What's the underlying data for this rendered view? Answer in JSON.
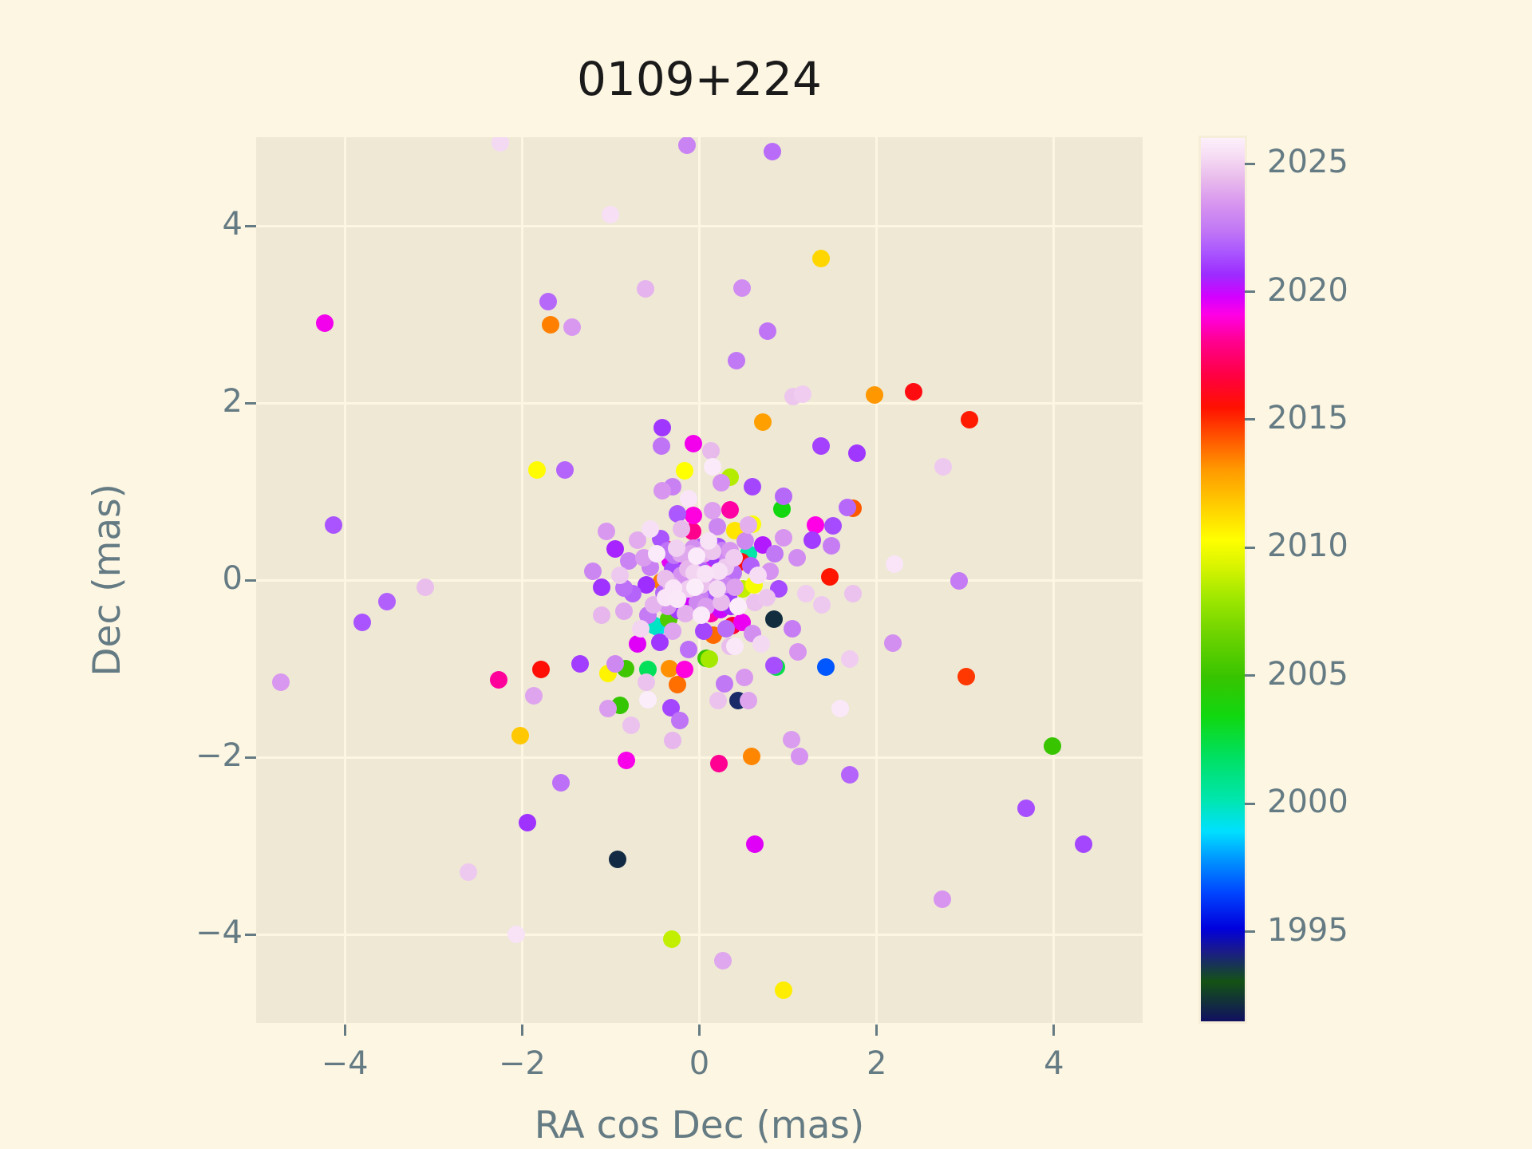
{
  "title": "0109+224",
  "axes": {
    "xlabel": "RA cos Dec (mas)",
    "ylabel": "Dec (mas)",
    "xlim": [
      -5,
      5
    ],
    "ylim": [
      -5,
      5
    ],
    "xticks": [
      -4,
      -2,
      0,
      2,
      4
    ],
    "yticks": [
      4,
      2,
      0,
      -2,
      -4
    ],
    "grid": true
  },
  "colorbar": {
    "vmin": 1991.5,
    "vmax": 2026,
    "ticks": [
      2025,
      2020,
      2015,
      2010,
      2005,
      2000,
      1995
    ],
    "stops": [
      [
        0.0,
        "#101060"
      ],
      [
        0.045,
        "#145214"
      ],
      [
        0.08,
        "#1a1a8c"
      ],
      [
        0.105,
        "#0000dc"
      ],
      [
        0.145,
        "#0044ff"
      ],
      [
        0.185,
        "#0099ff"
      ],
      [
        0.215,
        "#00e0ff"
      ],
      [
        0.25,
        "#00e6b0"
      ],
      [
        0.3,
        "#00e060"
      ],
      [
        0.345,
        "#10d810"
      ],
      [
        0.39,
        "#38c400"
      ],
      [
        0.44,
        "#70d400"
      ],
      [
        0.48,
        "#a0e800"
      ],
      [
        0.515,
        "#d8f400"
      ],
      [
        0.545,
        "#ffff00"
      ],
      [
        0.585,
        "#ffcc00"
      ],
      [
        0.625,
        "#ff9900"
      ],
      [
        0.66,
        "#ff5500"
      ],
      [
        0.695,
        "#ff1100"
      ],
      [
        0.73,
        "#ff0040"
      ],
      [
        0.77,
        "#ff0090"
      ],
      [
        0.8,
        "#ff00e6"
      ],
      [
        0.82,
        "#d400ff"
      ],
      [
        0.845,
        "#9d2bff"
      ],
      [
        0.87,
        "#a955ff"
      ],
      [
        0.895,
        "#c177f5"
      ],
      [
        0.925,
        "#d795ef"
      ],
      [
        0.955,
        "#e9bcec"
      ],
      [
        0.98,
        "#f6ddf4"
      ],
      [
        1.0,
        "#fdf0fb"
      ]
    ]
  },
  "colors": {
    "page_bg": "#fdf6e3",
    "axes_bg": "#eee8d5",
    "grid": "#fdf6e3",
    "tick_text": "#657b83",
    "title_text": "#1a1a1a"
  },
  "chart_data": {
    "type": "scatter",
    "title": "0109+224",
    "xlabel": "RA cos Dec (mas)",
    "ylabel": "Dec (mas)",
    "xlim": [
      -5,
      5
    ],
    "ylim": [
      -5,
      5
    ],
    "color_value": "epoch year (colorbar 1995-2025, gist_ncar-like colormap)",
    "marker_size_px": 22,
    "points": [
      [
        -4.72,
        -1.15,
        2023.5
      ],
      [
        -4.23,
        2.9,
        2019.3
      ],
      [
        -4.13,
        0.62,
        2021.5
      ],
      [
        -3.8,
        -0.48,
        2021.5
      ],
      [
        -3.52,
        -0.24,
        2021.8
      ],
      [
        -3.09,
        -0.08,
        2024.5
      ],
      [
        -2.61,
        -3.3,
        2024.8
      ],
      [
        -2.25,
        4.94,
        2025.2
      ],
      [
        -2.26,
        -1.13,
        2018.2
      ],
      [
        -2.02,
        -1.76,
        2011.8
      ],
      [
        -2.07,
        -4.0,
        2025.5
      ],
      [
        -1.79,
        -1.01,
        2015.6
      ],
      [
        -1.87,
        -1.31,
        2023.8
      ],
      [
        -1.71,
        3.14,
        2022.0
      ],
      [
        -1.68,
        2.88,
        2013.5
      ],
      [
        -1.44,
        2.86,
        2023.5
      ],
      [
        -1.83,
        1.24,
        2010.4
      ],
      [
        -1.52,
        1.24,
        2021.9
      ],
      [
        -1.35,
        -0.95,
        2021.0
      ],
      [
        -1.03,
        -1.05,
        2010.6
      ],
      [
        -0.9,
        -1.41,
        2004.8
      ],
      [
        -0.83,
        -1.0,
        2005.2
      ],
      [
        -0.58,
        -1.01,
        2002.0
      ],
      [
        -0.58,
        -1.35,
        2025.9
      ],
      [
        -1.03,
        -1.45,
        2023.6
      ],
      [
        -0.92,
        -3.15,
        1992.1
      ],
      [
        -0.82,
        -2.04,
        2019.2
      ],
      [
        -1.56,
        -2.29,
        2022.2
      ],
      [
        -1.94,
        -2.74,
        2020.8
      ],
      [
        -0.34,
        -1.0,
        2013.2
      ],
      [
        -0.17,
        -1.01,
        2019.0
      ],
      [
        -0.25,
        -1.18,
        2013.8
      ],
      [
        -0.32,
        -1.44,
        2021.2
      ],
      [
        -0.22,
        -1.59,
        2022.3
      ],
      [
        -0.77,
        -1.64,
        2024.6
      ],
      [
        -0.3,
        -1.81,
        2024.3
      ],
      [
        -0.31,
        -4.05,
        2008.8
      ],
      [
        0.27,
        -4.3,
        2023.9
      ],
      [
        0.95,
        -4.63,
        2010.8
      ],
      [
        0.63,
        -2.98,
        2019.6
      ],
      [
        2.74,
        -3.6,
        2023.4
      ],
      [
        3.69,
        -2.58,
        2021.4
      ],
      [
        4.33,
        -2.98,
        2021.2
      ],
      [
        3.98,
        -1.87,
        2005.0
      ],
      [
        3.01,
        -1.09,
        2014.8
      ],
      [
        1.43,
        -0.98,
        1996.8
      ],
      [
        0.44,
        -1.36,
        1993.9
      ],
      [
        1.59,
        -1.45,
        2025.7
      ],
      [
        2.18,
        -0.71,
        2023.2
      ],
      [
        1.7,
        -2.2,
        2021.9
      ],
      [
        1.13,
        -1.99,
        2023.3
      ],
      [
        1.04,
        -1.8,
        2023.6
      ],
      [
        0.59,
        -1.99,
        2013.4
      ],
      [
        0.22,
        -2.07,
        2018.1
      ],
      [
        2.93,
        -0.01,
        2022.5
      ],
      [
        2.2,
        0.18,
        2025.6
      ],
      [
        2.75,
        1.28,
        2024.8
      ],
      [
        2.42,
        2.13,
        2015.8
      ],
      [
        3.05,
        1.81,
        2015.3
      ],
      [
        1.98,
        2.09,
        2013.1
      ],
      [
        1.37,
        3.63,
        2011.4
      ],
      [
        0.82,
        4.84,
        2022.1
      ],
      [
        0.77,
        2.81,
        2022.3
      ],
      [
        -0.14,
        4.91,
        2022.8
      ],
      [
        -1.0,
        4.13,
        2025.4
      ],
      [
        -0.61,
        3.29,
        2024.2
      ],
      [
        0.48,
        3.3,
        2023.1
      ],
      [
        0.42,
        2.48,
        2022.4
      ],
      [
        1.06,
        2.07,
        2024.7
      ],
      [
        1.17,
        2.1,
        2024.9
      ],
      [
        0.72,
        1.78,
        2012.9
      ],
      [
        1.37,
        1.51,
        2021.1
      ],
      [
        1.78,
        1.43,
        2020.9
      ],
      [
        0.15,
        1.28,
        2025.8
      ],
      [
        0.35,
        1.16,
        2008.5
      ],
      [
        0.13,
        1.46,
        2024.4
      ],
      [
        0.93,
        0.8,
        2003.5
      ],
      [
        0.35,
        0.79,
        2018.3
      ],
      [
        0.6,
        0.63,
        2010.2
      ],
      [
        1.73,
        0.81,
        2014.2
      ],
      [
        1.67,
        0.82,
        2022.0
      ],
      [
        1.31,
        0.62,
        2019.1
      ],
      [
        1.51,
        0.61,
        2021.3
      ],
      [
        1.27,
        0.45,
        2021.0
      ],
      [
        1.49,
        0.39,
        2022.6
      ],
      [
        1.47,
        0.04,
        2015.4
      ],
      [
        -0.42,
        1.72,
        2020.9
      ],
      [
        -0.43,
        1.51,
        2022.3
      ],
      [
        -0.47,
        -0.53,
        1999.3
      ],
      [
        0.87,
        -0.98,
        2002.3
      ],
      [
        0.84,
        -0.96,
        2021.4
      ],
      [
        0.51,
        -1.1,
        2023.5
      ],
      [
        0.28,
        -1.17,
        2022.4
      ],
      [
        0.21,
        -1.36,
        2024.6
      ],
      [
        0.55,
        -1.36,
        2023.8
      ],
      [
        0.4,
        -0.75,
        2025.7
      ],
      [
        0.11,
        -0.89,
        2008.2
      ],
      [
        1.11,
        -0.81,
        2023.4
      ],
      [
        1.7,
        -0.89,
        2024.9
      ],
      [
        1.73,
        -0.15,
        2024.6
      ],
      [
        1.38,
        -0.28,
        2024.8
      ],
      [
        -1.1,
        -0.08,
        2020.8
      ],
      [
        -0.85,
        -0.09,
        2022.2
      ],
      [
        -0.07,
        1.54,
        2019.3
      ],
      [
        -0.17,
        1.23,
        2010.3
      ],
      [
        -0.42,
        1.01,
        2023.4
      ],
      [
        -0.12,
        0.92,
        2025.6
      ],
      [
        0.84,
        -0.44,
        1992.2
      ],
      [
        0.55,
        0.3,
        2000.3
      ],
      [
        0.02,
        -0.05,
        2024.6
      ],
      [
        -0.06,
        0.08,
        2025.1
      ],
      [
        0.1,
        0.02,
        2023.9
      ],
      [
        0.0,
        -0.18,
        2022.7
      ],
      [
        -0.12,
        -0.1,
        2024.9
      ],
      [
        0.15,
        -0.15,
        2021.6
      ],
      [
        -0.2,
        0.05,
        2023.3
      ],
      [
        0.22,
        0.1,
        2025.4
      ],
      [
        -0.08,
        0.22,
        2022.1
      ],
      [
        0.05,
        0.3,
        2024.2
      ],
      [
        0.18,
        0.25,
        2020.9
      ],
      [
        -0.25,
        -0.22,
        2025.7
      ],
      [
        0.28,
        -0.05,
        2022.9
      ],
      [
        -0.3,
        0.12,
        2021.3
      ],
      [
        0.08,
        -0.3,
        2023.6
      ],
      [
        -0.15,
        -0.28,
        2019.8
      ],
      [
        0.25,
        -0.25,
        2024.4
      ],
      [
        -0.28,
        0.28,
        2022.4
      ],
      [
        0.32,
        0.2,
        2023.1
      ],
      [
        -0.05,
        -0.08,
        2025.9
      ],
      [
        0.12,
        0.15,
        2019.2
      ],
      [
        -0.18,
        0.18,
        2020.4
      ],
      [
        0.3,
        0.02,
        2018.7
      ],
      [
        -0.32,
        -0.05,
        2024.0
      ],
      [
        0.02,
        0.12,
        2021.9
      ],
      [
        0.2,
        -0.1,
        2025.2
      ],
      [
        -0.1,
        0.3,
        2023.8
      ],
      [
        -0.22,
        -0.15,
        2022.6
      ],
      [
        0.15,
        0.32,
        2024.7
      ],
      [
        0.33,
        -0.18,
        2021.1
      ],
      [
        -0.02,
        -0.25,
        2023.0
      ],
      [
        0.07,
        0.07,
        2025.5
      ],
      [
        0.38,
        0.08,
        2022.2
      ],
      [
        -0.36,
        -0.3,
        2023.4
      ],
      [
        0.03,
        0.38,
        2021.7
      ],
      [
        -0.38,
        0.02,
        2024.5
      ],
      [
        0.26,
        0.33,
        2022.8
      ],
      [
        -0.16,
        -0.38,
        2024.1
      ],
      [
        0.36,
        -0.3,
        2020.6
      ],
      [
        -0.26,
        0.36,
        2025.0
      ],
      [
        0.4,
        -0.08,
        2023.7
      ],
      [
        -0.4,
        -0.14,
        2022.0
      ],
      [
        0.13,
        -0.38,
        2018.4
      ],
      [
        -0.33,
        0.22,
        2019.5
      ],
      [
        0.29,
        0.14,
        2024.8
      ],
      [
        -0.07,
        0.36,
        2023.2
      ],
      [
        0.21,
        0.38,
        2021.4
      ],
      [
        -0.13,
        0.13,
        2024.3
      ],
      [
        0.35,
        0.33,
        2023.5
      ],
      [
        -0.24,
        -0.34,
        2021.0
      ],
      [
        0.06,
        -0.13,
        2020.1
      ],
      [
        -0.29,
        -0.09,
        2025.6
      ],
      [
        0.17,
        0.05,
        2022.5
      ],
      [
        -0.03,
        0.27,
        2025.8
      ],
      [
        0.24,
        -0.33,
        2019.9
      ],
      [
        -0.36,
        0.33,
        2022.3
      ],
      [
        0.39,
        0.25,
        2024.9
      ],
      [
        -0.21,
        0.3,
        2023.9
      ],
      [
        -0.36,
        0.34,
        2016.8
      ],
      [
        -0.08,
        0.55,
        2018.0
      ],
      [
        -0.07,
        0.73,
        2019.0
      ],
      [
        0.4,
        0.56,
        2011.0
      ],
      [
        -0.43,
        -0.02,
        2013.6
      ],
      [
        0.49,
        -0.1,
        2008.8
      ],
      [
        -0.35,
        -0.44,
        2005.7
      ],
      [
        -0.51,
        -0.51,
        1999.8
      ],
      [
        0.37,
        -0.51,
        2016.4
      ],
      [
        0.16,
        -0.62,
        2013.9
      ],
      [
        0.47,
        0.21,
        2015.7
      ],
      [
        0.62,
        -0.05,
        2010.1
      ],
      [
        0.02,
        -0.4,
        2025.8
      ],
      [
        -0.38,
        -0.2,
        2025.6
      ],
      [
        0.44,
        -0.3,
        2025.9
      ],
      [
        0.1,
        0.44,
        2025.5
      ],
      [
        -0.48,
        0.3,
        2025.8
      ],
      [
        0.52,
        0.44,
        2023.0
      ],
      [
        -0.55,
        0.14,
        2022.7
      ],
      [
        0.58,
        0.16,
        2021.8
      ],
      [
        -0.52,
        -0.28,
        2024.2
      ],
      [
        0.3,
        -0.55,
        2022.1
      ],
      [
        -0.3,
        -0.58,
        2023.8
      ],
      [
        0.05,
        -0.58,
        2021.2
      ],
      [
        -0.6,
        -0.05,
        2020.7
      ],
      [
        0.63,
        -0.25,
        2024.6
      ],
      [
        -0.44,
        0.47,
        2021.5
      ],
      [
        0.2,
        0.6,
        2022.9
      ],
      [
        -0.2,
        0.58,
        2024.4
      ],
      [
        0.48,
        -0.48,
        2019.4
      ],
      [
        -0.58,
        -0.4,
        2022.5
      ],
      [
        0.66,
        0.05,
        2025.3
      ],
      [
        -0.63,
        0.25,
        2023.6
      ],
      [
        0.08,
        -0.88,
        2004.9
      ],
      [
        -0.7,
        0.45,
        2024.0
      ],
      [
        0.72,
        0.4,
        2020.3
      ],
      [
        -0.75,
        -0.15,
        2021.9
      ],
      [
        0.8,
        0.1,
        2023.3
      ],
      [
        -0.8,
        0.22,
        2022.8
      ],
      [
        0.76,
        -0.2,
        2024.7
      ],
      [
        -0.66,
        -0.55,
        2025.1
      ],
      [
        0.6,
        -0.6,
        2023.2
      ],
      [
        -0.45,
        -0.7,
        2020.9
      ],
      [
        0.35,
        -0.75,
        2024.5
      ],
      [
        -0.12,
        -0.78,
        2022.2
      ],
      [
        0.55,
        0.62,
        2024.1
      ],
      [
        -0.55,
        0.58,
        2025.4
      ],
      [
        0.15,
        0.78,
        2023.7
      ],
      [
        -0.25,
        0.75,
        2021.6
      ],
      [
        0.85,
        0.3,
        2022.4
      ],
      [
        -0.85,
        -0.35,
        2023.9
      ],
      [
        0.9,
        -0.1,
        2021.3
      ],
      [
        -0.9,
        0.05,
        2024.8
      ],
      [
        0.7,
        -0.72,
        2025.2
      ],
      [
        -0.7,
        -0.72,
        2019.6
      ],
      [
        0.95,
        0.48,
        2023.4
      ],
      [
        -0.95,
        0.35,
        2020.5
      ],
      [
        1.1,
        0.25,
        2023.1
      ],
      [
        -1.1,
        -0.4,
        2024.3
      ],
      [
        1.05,
        -0.55,
        2022.6
      ],
      [
        -1.05,
        0.55,
        2023.5
      ],
      [
        0.95,
        0.95,
        2022.0
      ],
      [
        -0.95,
        -0.95,
        2023.0
      ],
      [
        1.2,
        -0.15,
        2024.9
      ],
      [
        -1.2,
        0.1,
        2022.9
      ],
      [
        0.6,
        1.05,
        2021.2
      ],
      [
        -0.6,
        -1.15,
        2024.6
      ],
      [
        0.25,
        1.1,
        2023.3
      ],
      [
        -0.3,
        1.05,
        2022.7
      ]
    ]
  }
}
